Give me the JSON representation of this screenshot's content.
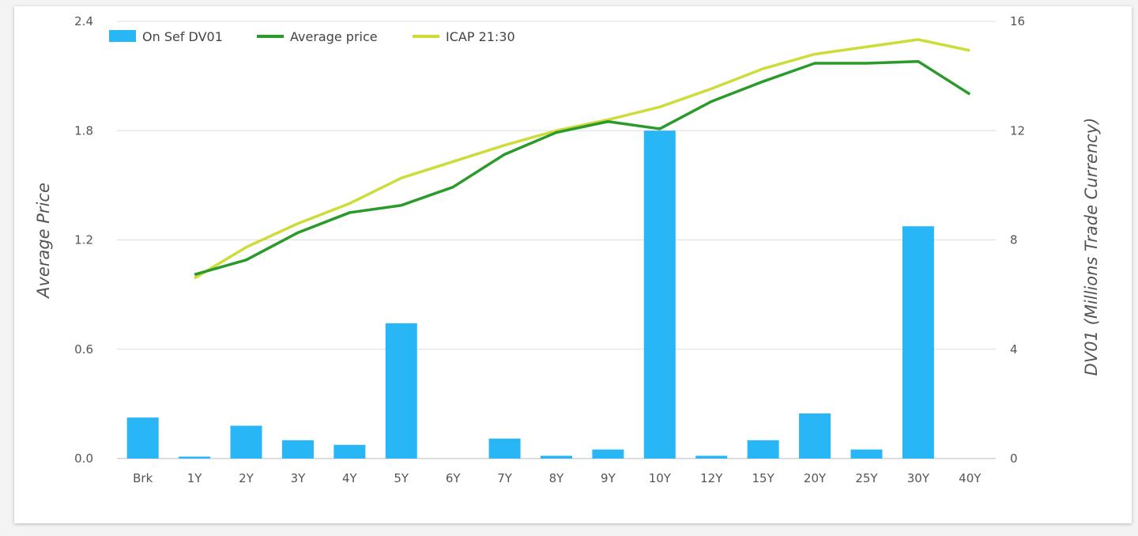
{
  "chart_data": {
    "type": "bar",
    "categories": [
      "Brk",
      "1Y",
      "2Y",
      "3Y",
      "4Y",
      "5Y",
      "6Y",
      "7Y",
      "8Y",
      "9Y",
      "10Y",
      "12Y",
      "15Y",
      "20Y",
      "25Y",
      "30Y",
      "40Y"
    ],
    "y_left": {
      "label": "Average Price",
      "ticks": [
        "0.0",
        "0.6",
        "1.2",
        "1.8",
        "2.4"
      ],
      "range": [
        0,
        2.4
      ]
    },
    "y_right": {
      "label": "DV01  (Millions Trade Currency)",
      "ticks": [
        "0",
        "4",
        "8",
        "12",
        "16"
      ],
      "range": [
        0,
        16
      ]
    },
    "series": [
      {
        "name": "On Sef DV01",
        "kind": "bar",
        "axis": "right",
        "color": "#29b6f6",
        "values": [
          1.5,
          0.07,
          1.2,
          0.67,
          0.5,
          4.95,
          0,
          0.73,
          0.1,
          0.33,
          12.0,
          0.1,
          0.67,
          1.65,
          0.33,
          8.5,
          0
        ]
      },
      {
        "name": "Average price",
        "kind": "line",
        "axis": "left",
        "color": "#2a9a2a",
        "values": [
          null,
          1.01,
          1.09,
          1.24,
          1.35,
          1.39,
          1.49,
          1.67,
          1.79,
          1.85,
          1.81,
          1.96,
          2.07,
          2.17,
          2.17,
          2.18,
          2.0
        ]
      },
      {
        "name": "ICAP 21:30",
        "kind": "line",
        "axis": "left",
        "color": "#cddc39",
        "values": [
          null,
          0.99,
          1.16,
          1.29,
          1.4,
          1.54,
          1.63,
          1.72,
          1.8,
          1.86,
          1.93,
          2.03,
          2.14,
          2.22,
          2.26,
          2.3,
          2.24
        ]
      }
    ],
    "legend": "top-left",
    "grid": true
  }
}
